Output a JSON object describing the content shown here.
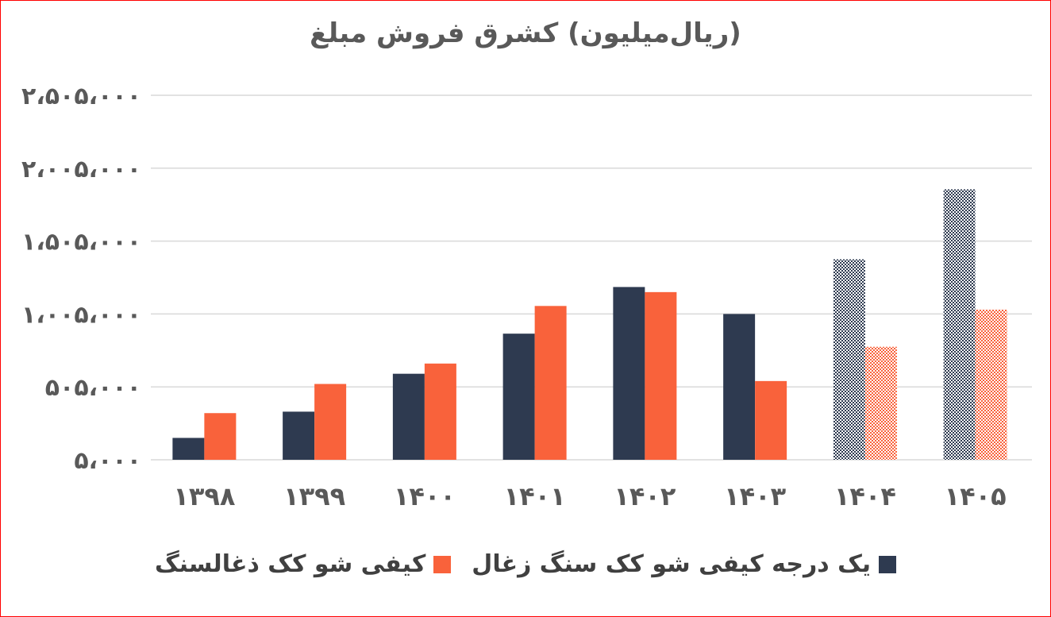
{
  "chart_data": {
    "type": "bar",
    "title": "(ریال‌میلیون) کشرق فروش مبلغ",
    "categories": [
      "۱۳۹۸",
      "۱۳۹۹",
      "۱۴۰۰",
      "۱۴۰۱",
      "۱۴۰۲",
      "۱۴۰۳",
      "۱۴۰۴",
      "۱۴۰۵"
    ],
    "yticks": [
      {
        "value": 5000,
        "label": "۵،۰۰۰"
      },
      {
        "value": 505000,
        "label": "۵۰۵،۰۰۰"
      },
      {
        "value": 1005000,
        "label": "۱،۰۰۵،۰۰۰"
      },
      {
        "value": 1505000,
        "label": "۱،۵۰۵،۰۰۰"
      },
      {
        "value": 2005000,
        "label": "۲،۰۰۵،۰۰۰"
      },
      {
        "value": 2505000,
        "label": "۲،۵۰۵،۰۰۰"
      }
    ],
    "ylim": [
      5000,
      2505000
    ],
    "grid": true,
    "legend_position": "bottom",
    "patterned_categories": [
      "۱۴۰۴",
      "۱۴۰۵"
    ],
    "series": [
      {
        "name": "یک درجه کیفی شو کک سنگ زغال",
        "color": "#2e3a50",
        "values": [
          155000,
          335000,
          595000,
          870000,
          1190000,
          1005000,
          1380000,
          1860000
        ]
      },
      {
        "name": "کیفی شو کک ذغالسنگ",
        "color": "#f9623b",
        "values": [
          325000,
          525000,
          665000,
          1060000,
          1155000,
          545000,
          780000,
          1035000
        ]
      }
    ]
  }
}
